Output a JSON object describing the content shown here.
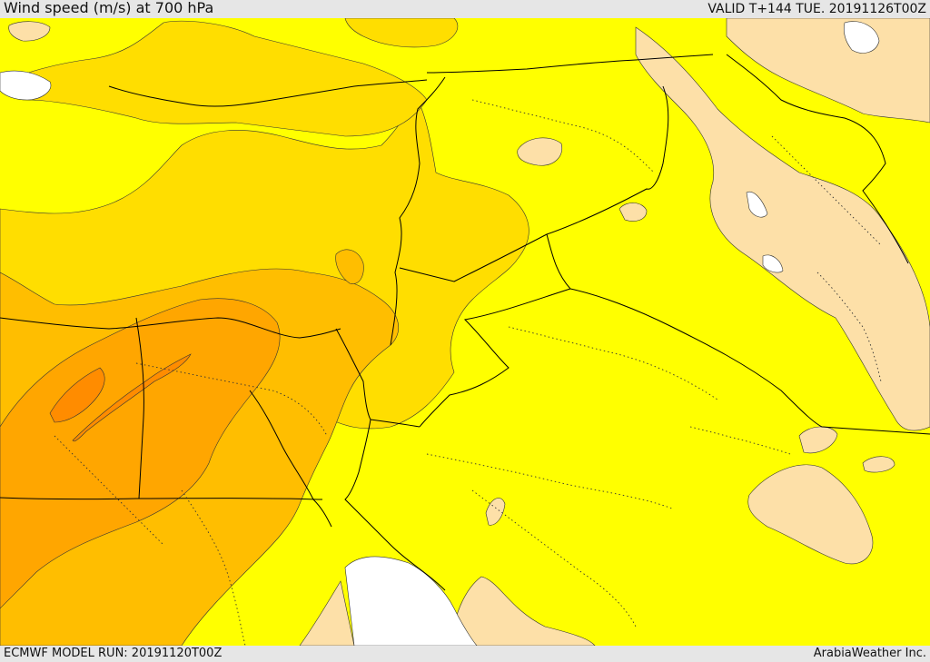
{
  "header": {
    "title": "Wind speed (m/s) at 700 hPa",
    "valid": "VALID T+144 TUE. 20191126T00Z"
  },
  "footer": {
    "model_run": "ECMWF MODEL RUN: 20191120T00Z",
    "credit": "ArabiaWeather Inc."
  },
  "colors": {
    "level_1": "#fde0a8",
    "level_2": "#ffff00",
    "level_3": "#ffde00",
    "level_4": "#ffbe00",
    "level_5": "#ffa600",
    "level_6": "#ff8c00",
    "level_7": "#ff7710",
    "no_data": "#ffffff",
    "borders": "#000000"
  }
}
